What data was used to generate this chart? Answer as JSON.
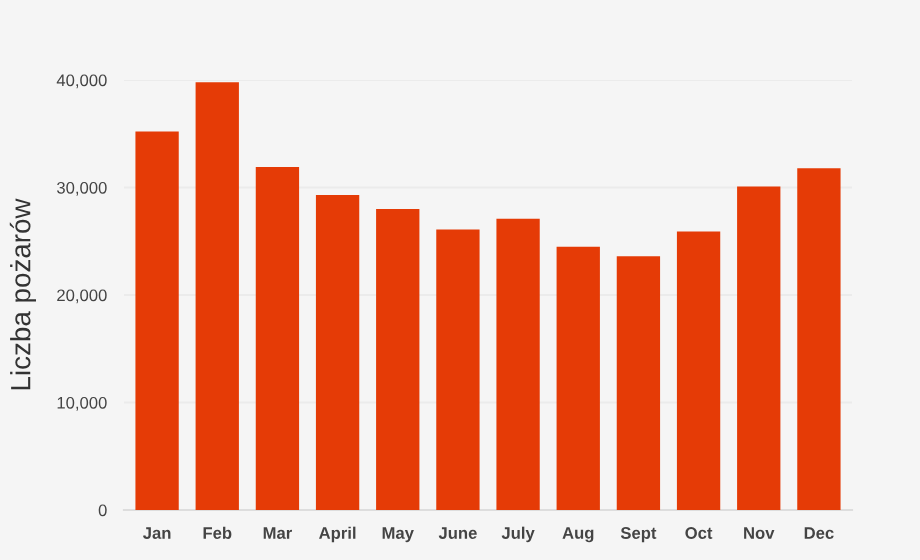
{
  "chart_data": {
    "type": "bar",
    "ylabel": "Liczba pożarów",
    "categories": [
      "Jan",
      "Feb",
      "Mar",
      "April",
      "May",
      "June",
      "July",
      "Aug",
      "Sept",
      "Oct",
      "Nov",
      "Dec"
    ],
    "values": [
      35200,
      39800,
      31900,
      29300,
      28000,
      26100,
      27100,
      24500,
      23600,
      25900,
      30100,
      31800
    ],
    "color": "#e53b06",
    "ylim": [
      0,
      40000
    ],
    "yticks": [
      0,
      {
        "value": 10000,
        "label": "10,000"
      },
      {
        "value": 20000,
        "label": "20,000"
      },
      {
        "value": 30000,
        "label": "30,000"
      },
      {
        "value": 40000,
        "label": "40,000"
      }
    ],
    "grid": "y"
  }
}
